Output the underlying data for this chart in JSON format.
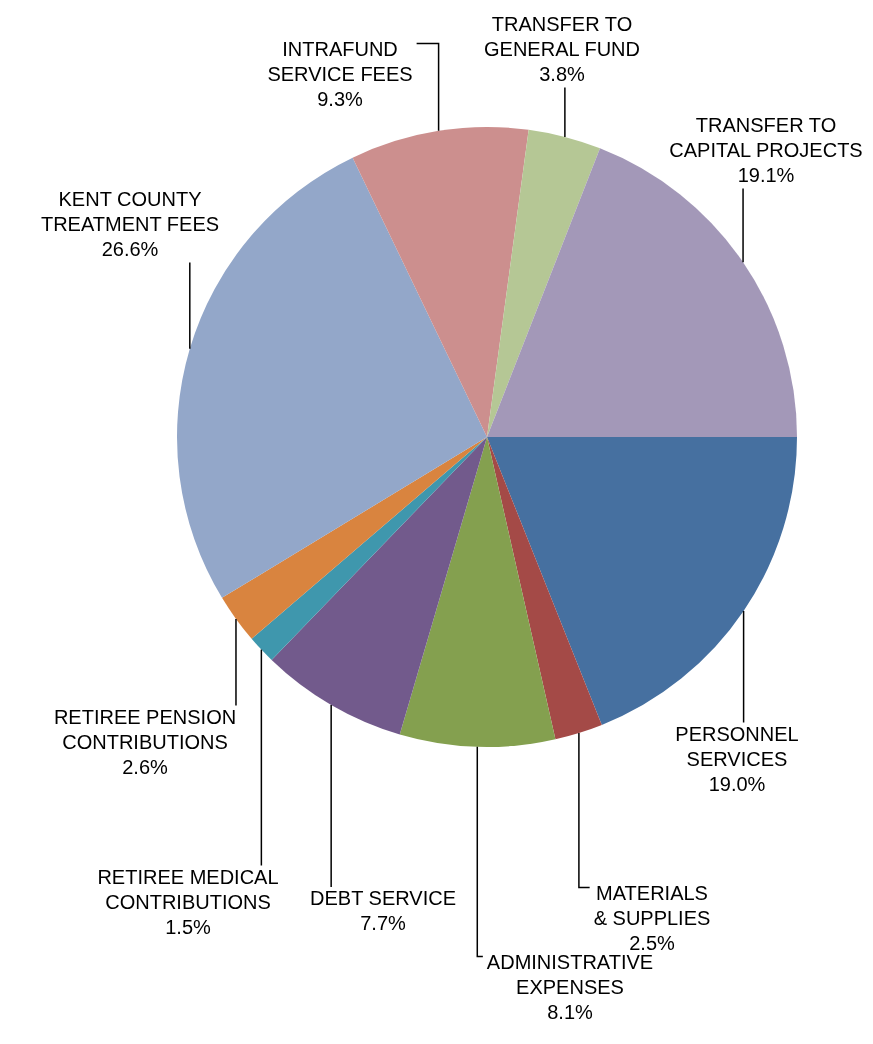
{
  "chart_data": {
    "type": "pie",
    "categories": [
      "PERSONNEL SERVICES",
      "MATERIALS & SUPPLIES",
      "ADMINISTRATIVE EXPENSES",
      "DEBT SERVICE",
      "RETIREE MEDICAL CONTRIBUTIONS",
      "RETIREE PENSION CONTRIBUTIONS",
      "KENT COUNTY TREATMENT FEES",
      "INTRAFUND SERVICE FEES",
      "TRANSFER TO GENERAL FUND",
      "TRANSFER TO CAPITAL PROJECTS"
    ],
    "values": [
      19.0,
      2.5,
      8.1,
      7.7,
      1.5,
      2.6,
      26.6,
      9.3,
      3.8,
      19.1
    ],
    "value_labels": [
      "19.0%",
      "2.5%",
      "8.1%",
      "7.7%",
      "1.5%",
      "2.6%",
      "26.6%",
      "9.3%",
      "3.8%",
      "19.1%"
    ],
    "colors": [
      "#4670a0",
      "#a44a47",
      "#84a04f",
      "#725a8c",
      "#3f97ad",
      "#d9843f",
      "#93a7c9",
      "#cc8f8e",
      "#b5c795",
      "#a398b8"
    ],
    "legend": false
  }
}
